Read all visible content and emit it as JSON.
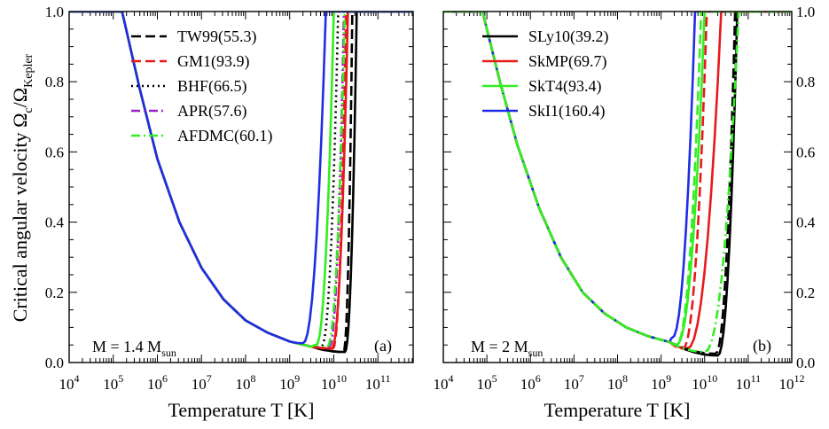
{
  "figure": {
    "ylabel": "Critical angular velocity Ω",
    "ylabel_sub1": "c",
    "ylabel_mid": "/Ω",
    "ylabel_sub2": "Kepler"
  },
  "chart_data": [
    {
      "type": "line",
      "panel_label": "(a)",
      "mass_label": "M = 1.4 M",
      "mass_label_sub": "sun",
      "xlabel": "Temperature T [K]",
      "xscale": "log",
      "xlim": [
        4,
        11.8
      ],
      "ylim": [
        0,
        1
      ],
      "xticks": [
        {
          "exp": 4,
          "label": "10",
          "sup": "4"
        },
        {
          "exp": 5,
          "label": "10",
          "sup": "5"
        },
        {
          "exp": 6,
          "label": "10",
          "sup": "6"
        },
        {
          "exp": 7,
          "label": "10",
          "sup": "7"
        },
        {
          "exp": 8,
          "label": "10",
          "sup": "8"
        },
        {
          "exp": 9,
          "label": "10",
          "sup": "9"
        },
        {
          "exp": 10,
          "label": "10",
          "sup": "10"
        },
        {
          "exp": 11,
          "label": "10",
          "sup": "11"
        }
      ],
      "yticks": [
        {
          "value": 0.0,
          "label": "0.0"
        },
        {
          "value": 0.2,
          "label": "0.2"
        },
        {
          "value": 0.4,
          "label": "0.4"
        },
        {
          "value": 0.6,
          "label": "0.6"
        },
        {
          "value": 0.8,
          "label": "0.8"
        },
        {
          "value": 1.0,
          "label": "1.0"
        }
      ],
      "yticks_side": "left",
      "legend_position": "top-right",
      "series": [
        {
          "name": "TW99(55.3)",
          "color": "#000000",
          "dash": "dashed",
          "minimum_log10T": 10.22,
          "minimum": 0.03,
          "log10T_reach_1": 10.42
        },
        {
          "name": "GM1(93.9)",
          "color": "#e8191c",
          "dash": "dashed",
          "minimum_log10T": 9.98,
          "minimum": 0.04,
          "log10T_reach_1": 10.28
        },
        {
          "name": "BHF(66.5)",
          "color": "#000000",
          "dash": "dotted",
          "minimum_log10T": 9.72,
          "minimum": 0.045,
          "log10T_reach_1": 10.1
        },
        {
          "name": "APR(57.6)",
          "color": "#9b23c7",
          "dash": "dash-dot",
          "minimum_log10T": 9.9,
          "minimum": 0.045,
          "log10T_reach_1": 10.23
        },
        {
          "name": "AFDMC(60.1)",
          "color": "#33ee22",
          "dash": "dash-dot",
          "minimum_log10T": 9.85,
          "minimum": 0.045,
          "log10T_reach_1": 10.25
        },
        {
          "name": "",
          "color": "#000000",
          "dash": "solid",
          "minimum_log10T": 10.25,
          "minimum": 0.03,
          "log10T_reach_1": 10.52
        },
        {
          "name": "",
          "color": "#e8191c",
          "dash": "solid",
          "minimum_log10T": 9.95,
          "minimum": 0.04,
          "log10T_reach_1": 10.32
        },
        {
          "name": "",
          "color": "#33ee22",
          "dash": "solid",
          "minimum_log10T": 9.6,
          "minimum": 0.05,
          "log10T_reach_1": 10.0
        },
        {
          "name": "",
          "color": "#1f2ee6",
          "dash": "solid",
          "minimum_log10T": 9.3,
          "minimum": 0.055,
          "log10T_reach_1": 9.82
        }
      ],
      "common_curve": {
        "log10T_leave_1": 5.2,
        "points": [
          [
            5.2,
            1.0
          ],
          [
            5.6,
            0.78
          ],
          [
            6.0,
            0.58
          ],
          [
            6.5,
            0.4
          ],
          [
            7.0,
            0.27
          ],
          [
            7.5,
            0.18
          ],
          [
            8.0,
            0.12
          ],
          [
            8.5,
            0.085
          ],
          [
            9.0,
            0.06
          ],
          [
            9.5,
            0.045
          ]
        ]
      }
    },
    {
      "type": "line",
      "panel_label": "(b)",
      "mass_label": "M = 2 M",
      "mass_label_sub": "sun",
      "xlabel": "Temperature T [K]",
      "xscale": "log",
      "xlim": [
        4,
        12
      ],
      "ylim": [
        0,
        1
      ],
      "xticks": [
        {
          "exp": 4,
          "label": "10",
          "sup": "4"
        },
        {
          "exp": 5,
          "label": "10",
          "sup": "5"
        },
        {
          "exp": 6,
          "label": "10",
          "sup": "6"
        },
        {
          "exp": 7,
          "label": "10",
          "sup": "7"
        },
        {
          "exp": 8,
          "label": "10",
          "sup": "8"
        },
        {
          "exp": 9,
          "label": "10",
          "sup": "9"
        },
        {
          "exp": 10,
          "label": "10",
          "sup": "10"
        },
        {
          "exp": 11,
          "label": "10",
          "sup": "11"
        },
        {
          "exp": 12,
          "label": "10",
          "sup": "12"
        }
      ],
      "yticks": [
        {
          "value": 0.0,
          "label": "0.0"
        },
        {
          "value": 0.2,
          "label": "0.2"
        },
        {
          "value": 0.4,
          "label": "0.4"
        },
        {
          "value": 0.6,
          "label": "0.6"
        },
        {
          "value": 0.8,
          "label": "0.8"
        },
        {
          "value": 1.0,
          "label": "1.0"
        }
      ],
      "yticks_side": "right",
      "legend_position": "top-right",
      "series": [
        {
          "name": "SLy10(39.2)",
          "color": "#000000",
          "dash": "solid",
          "minimum_log10T": 10.3,
          "minimum": 0.02,
          "log10T_reach_1": 10.75
        },
        {
          "name": "SkMP(69.7)",
          "color": "#e8191c",
          "dash": "solid",
          "minimum_log10T": 9.6,
          "minimum": 0.04,
          "log10T_reach_1": 10.38
        },
        {
          "name": "SkT4(93.4)",
          "color": "#33ee22",
          "dash": "solid",
          "minimum_log10T": 9.35,
          "minimum": 0.05,
          "log10T_reach_1": 10.0
        },
        {
          "name": "SkI1(160.4)",
          "color": "#1f2ee6",
          "dash": "solid",
          "minimum_log10T": 9.25,
          "minimum": 0.07,
          "log10T_reach_1": 9.78
        },
        {
          "name": "",
          "color": "#000000",
          "dash": "dashed",
          "minimum_log10T": 10.25,
          "minimum": 0.025,
          "log10T_reach_1": 10.7
        },
        {
          "name": "",
          "color": "#e8191c",
          "dash": "dashed",
          "minimum_log10T": 9.5,
          "minimum": 0.04,
          "log10T_reach_1": 10.05
        },
        {
          "name": "",
          "color": "#33ee22",
          "dash": "dash-dot",
          "minimum_log10T": 10.0,
          "minimum": 0.03,
          "log10T_reach_1": 10.78
        },
        {
          "name": "",
          "color": "#33ee22",
          "dash": "dashed",
          "minimum_log10T": 9.35,
          "minimum": 0.05,
          "log10T_reach_1": 9.92
        }
      ],
      "common_curve": {
        "log10T_leave_1": 4.9,
        "points": [
          [
            4.9,
            1.0
          ],
          [
            5.3,
            0.8
          ],
          [
            5.7,
            0.62
          ],
          [
            6.2,
            0.44
          ],
          [
            6.7,
            0.3
          ],
          [
            7.2,
            0.2
          ],
          [
            7.7,
            0.14
          ],
          [
            8.2,
            0.1
          ],
          [
            8.7,
            0.075
          ],
          [
            9.2,
            0.058
          ]
        ]
      }
    }
  ]
}
